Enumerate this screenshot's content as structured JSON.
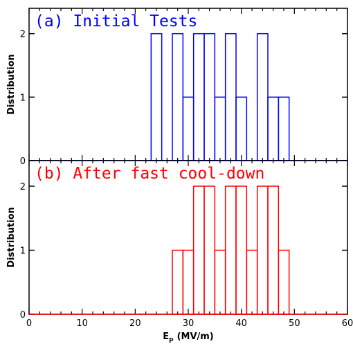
{
  "chart_data": [
    {
      "type": "bar",
      "title": "(a) Initial Tests",
      "color": "#0000ff",
      "ylabel": "Distribution",
      "xlabel": "",
      "xlim": [
        0,
        60
      ],
      "ylim": [
        0,
        2.4
      ],
      "bin_width": 2,
      "bins": [
        {
          "x0": 23,
          "x1": 25,
          "count": 2
        },
        {
          "x0": 27,
          "x1": 29,
          "count": 2
        },
        {
          "x0": 29,
          "x1": 31,
          "count": 1
        },
        {
          "x0": 31,
          "x1": 33,
          "count": 2
        },
        {
          "x0": 33,
          "x1": 35,
          "count": 2
        },
        {
          "x0": 35,
          "x1": 37,
          "count": 1
        },
        {
          "x0": 37,
          "x1": 39,
          "count": 2
        },
        {
          "x0": 39,
          "x1": 41,
          "count": 1
        },
        {
          "x0": 43,
          "x1": 45,
          "count": 2
        },
        {
          "x0": 45,
          "x1": 47,
          "count": 1
        },
        {
          "x0": 47,
          "x1": 49,
          "count": 1
        }
      ],
      "yticks": [
        "0",
        "1",
        "2"
      ],
      "xticks": []
    },
    {
      "type": "bar",
      "title": "(b) After fast cool-down",
      "color": "#ff0000",
      "ylabel": "Distribution",
      "xlabel": "E_p (MV/m)",
      "xlim": [
        0,
        60
      ],
      "ylim": [
        0,
        2.4
      ],
      "bin_width": 2,
      "bins": [
        {
          "x0": 27,
          "x1": 29,
          "count": 1
        },
        {
          "x0": 29,
          "x1": 31,
          "count": 1
        },
        {
          "x0": 31,
          "x1": 33,
          "count": 2
        },
        {
          "x0": 33,
          "x1": 35,
          "count": 2
        },
        {
          "x0": 35,
          "x1": 37,
          "count": 1
        },
        {
          "x0": 37,
          "x1": 39,
          "count": 2
        },
        {
          "x0": 39,
          "x1": 41,
          "count": 2
        },
        {
          "x0": 41,
          "x1": 43,
          "count": 1
        },
        {
          "x0": 43,
          "x1": 45,
          "count": 2
        },
        {
          "x0": 45,
          "x1": 47,
          "count": 2
        },
        {
          "x0": 47,
          "x1": 49,
          "count": 1
        }
      ],
      "yticks": [
        "0",
        "1",
        "2"
      ],
      "xticks": [
        "0",
        "10",
        "20",
        "30",
        "40",
        "50",
        "60"
      ]
    }
  ],
  "xaxis": {
    "label_main": "E",
    "label_sub": "p",
    "label_units": "(MV/m)"
  }
}
